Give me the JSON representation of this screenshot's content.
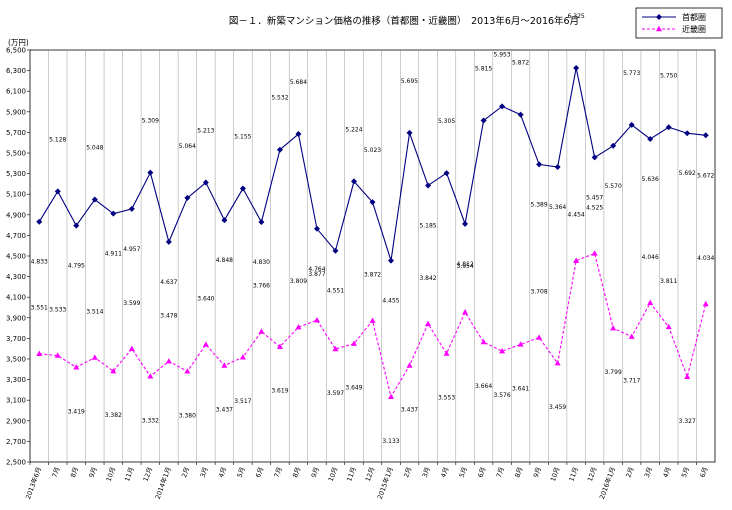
{
  "chart_data": {
    "type": "line",
    "title": "図－１．新築マンション価格の推移（首都圏・近畿圏）　2013年6月～2016年6月",
    "unit_label": "(万円)",
    "ylim": [
      2500,
      6500
    ],
    "ytick_step": 200,
    "grid": "vertical",
    "legend_position": "top-right",
    "categories": [
      "2013年6月",
      "7月",
      "8月",
      "9月",
      "10月",
      "11月",
      "12月",
      "2014年1月",
      "2月",
      "3月",
      "4月",
      "5月",
      "6月",
      "7月",
      "8月",
      "9月",
      "10月",
      "11月",
      "12月",
      "2015年1月",
      "2月",
      "3月",
      "4月",
      "5月",
      "6月",
      "7月",
      "8月",
      "9月",
      "10月",
      "11月",
      "12月",
      "2016年1月",
      "2月",
      "3月",
      "4月",
      "5月",
      "6月"
    ],
    "series": [
      {
        "name": "首都圏",
        "color": "#000080",
        "marker": "diamond",
        "line": "solid",
        "values": [
          4833,
          5128,
          4795,
          5048,
          4911,
          4957,
          5309,
          4637,
          5064,
          5213,
          4848,
          5155,
          4830,
          5532,
          5684,
          4764,
          4551,
          5224,
          5023,
          4455,
          5695,
          5185,
          5305,
          4812,
          5815,
          5953,
          5872,
          5389,
          5364,
          6325,
          5457,
          5570,
          5773,
          5636,
          5750,
          5692,
          5672
        ]
      },
      {
        "name": "近畿圏",
        "color": "#ff00ff",
        "marker": "triangle",
        "line": "dashed",
        "values": [
          3551,
          3533,
          3419,
          3514,
          3382,
          3599,
          3332,
          3478,
          3380,
          3640,
          3437,
          3517,
          3766,
          3619,
          3809,
          3877,
          3597,
          3649,
          3872,
          3133,
          3437,
          3842,
          3553,
          3954,
          3664,
          3576,
          3641,
          3708,
          3459,
          4454,
          4525,
          3799,
          3717,
          4046,
          3811,
          3327,
          4034
        ]
      }
    ]
  }
}
